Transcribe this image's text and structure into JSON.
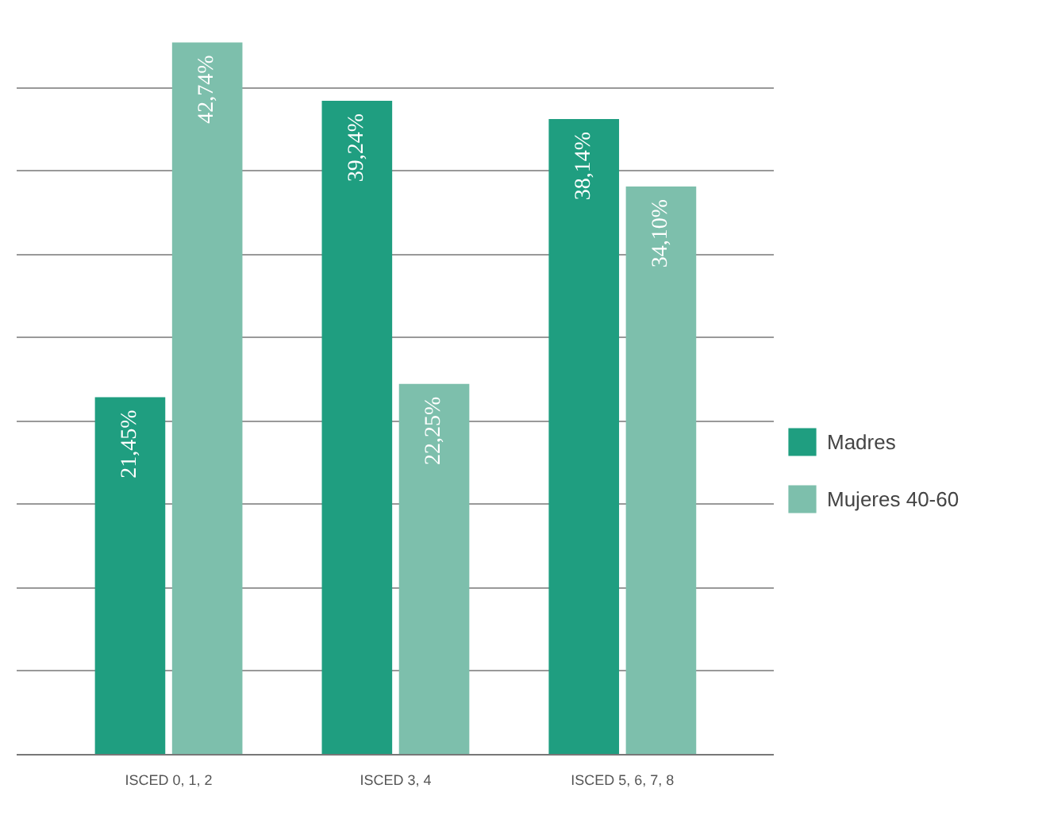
{
  "chart_data": {
    "type": "bar",
    "categories": [
      "ISCED 0, 1, 2",
      "ISCED 3, 4",
      "ISCED 5, 6, 7, 8"
    ],
    "series": [
      {
        "name": "Madres",
        "color": "#1f9e80",
        "values": [
          21.45,
          39.24,
          38.14
        ],
        "value_labels": [
          "21,45%",
          "39,24%",
          "38,14%"
        ]
      },
      {
        "name": "Mujeres 40-60",
        "color": "#7dbfac",
        "values": [
          42.74,
          22.25,
          34.1
        ],
        "value_labels": [
          "42,74%",
          "22,25%",
          "34,10%"
        ]
      }
    ],
    "tick_labels": "x",
    "grid": "y",
    "legend": "right"
  }
}
